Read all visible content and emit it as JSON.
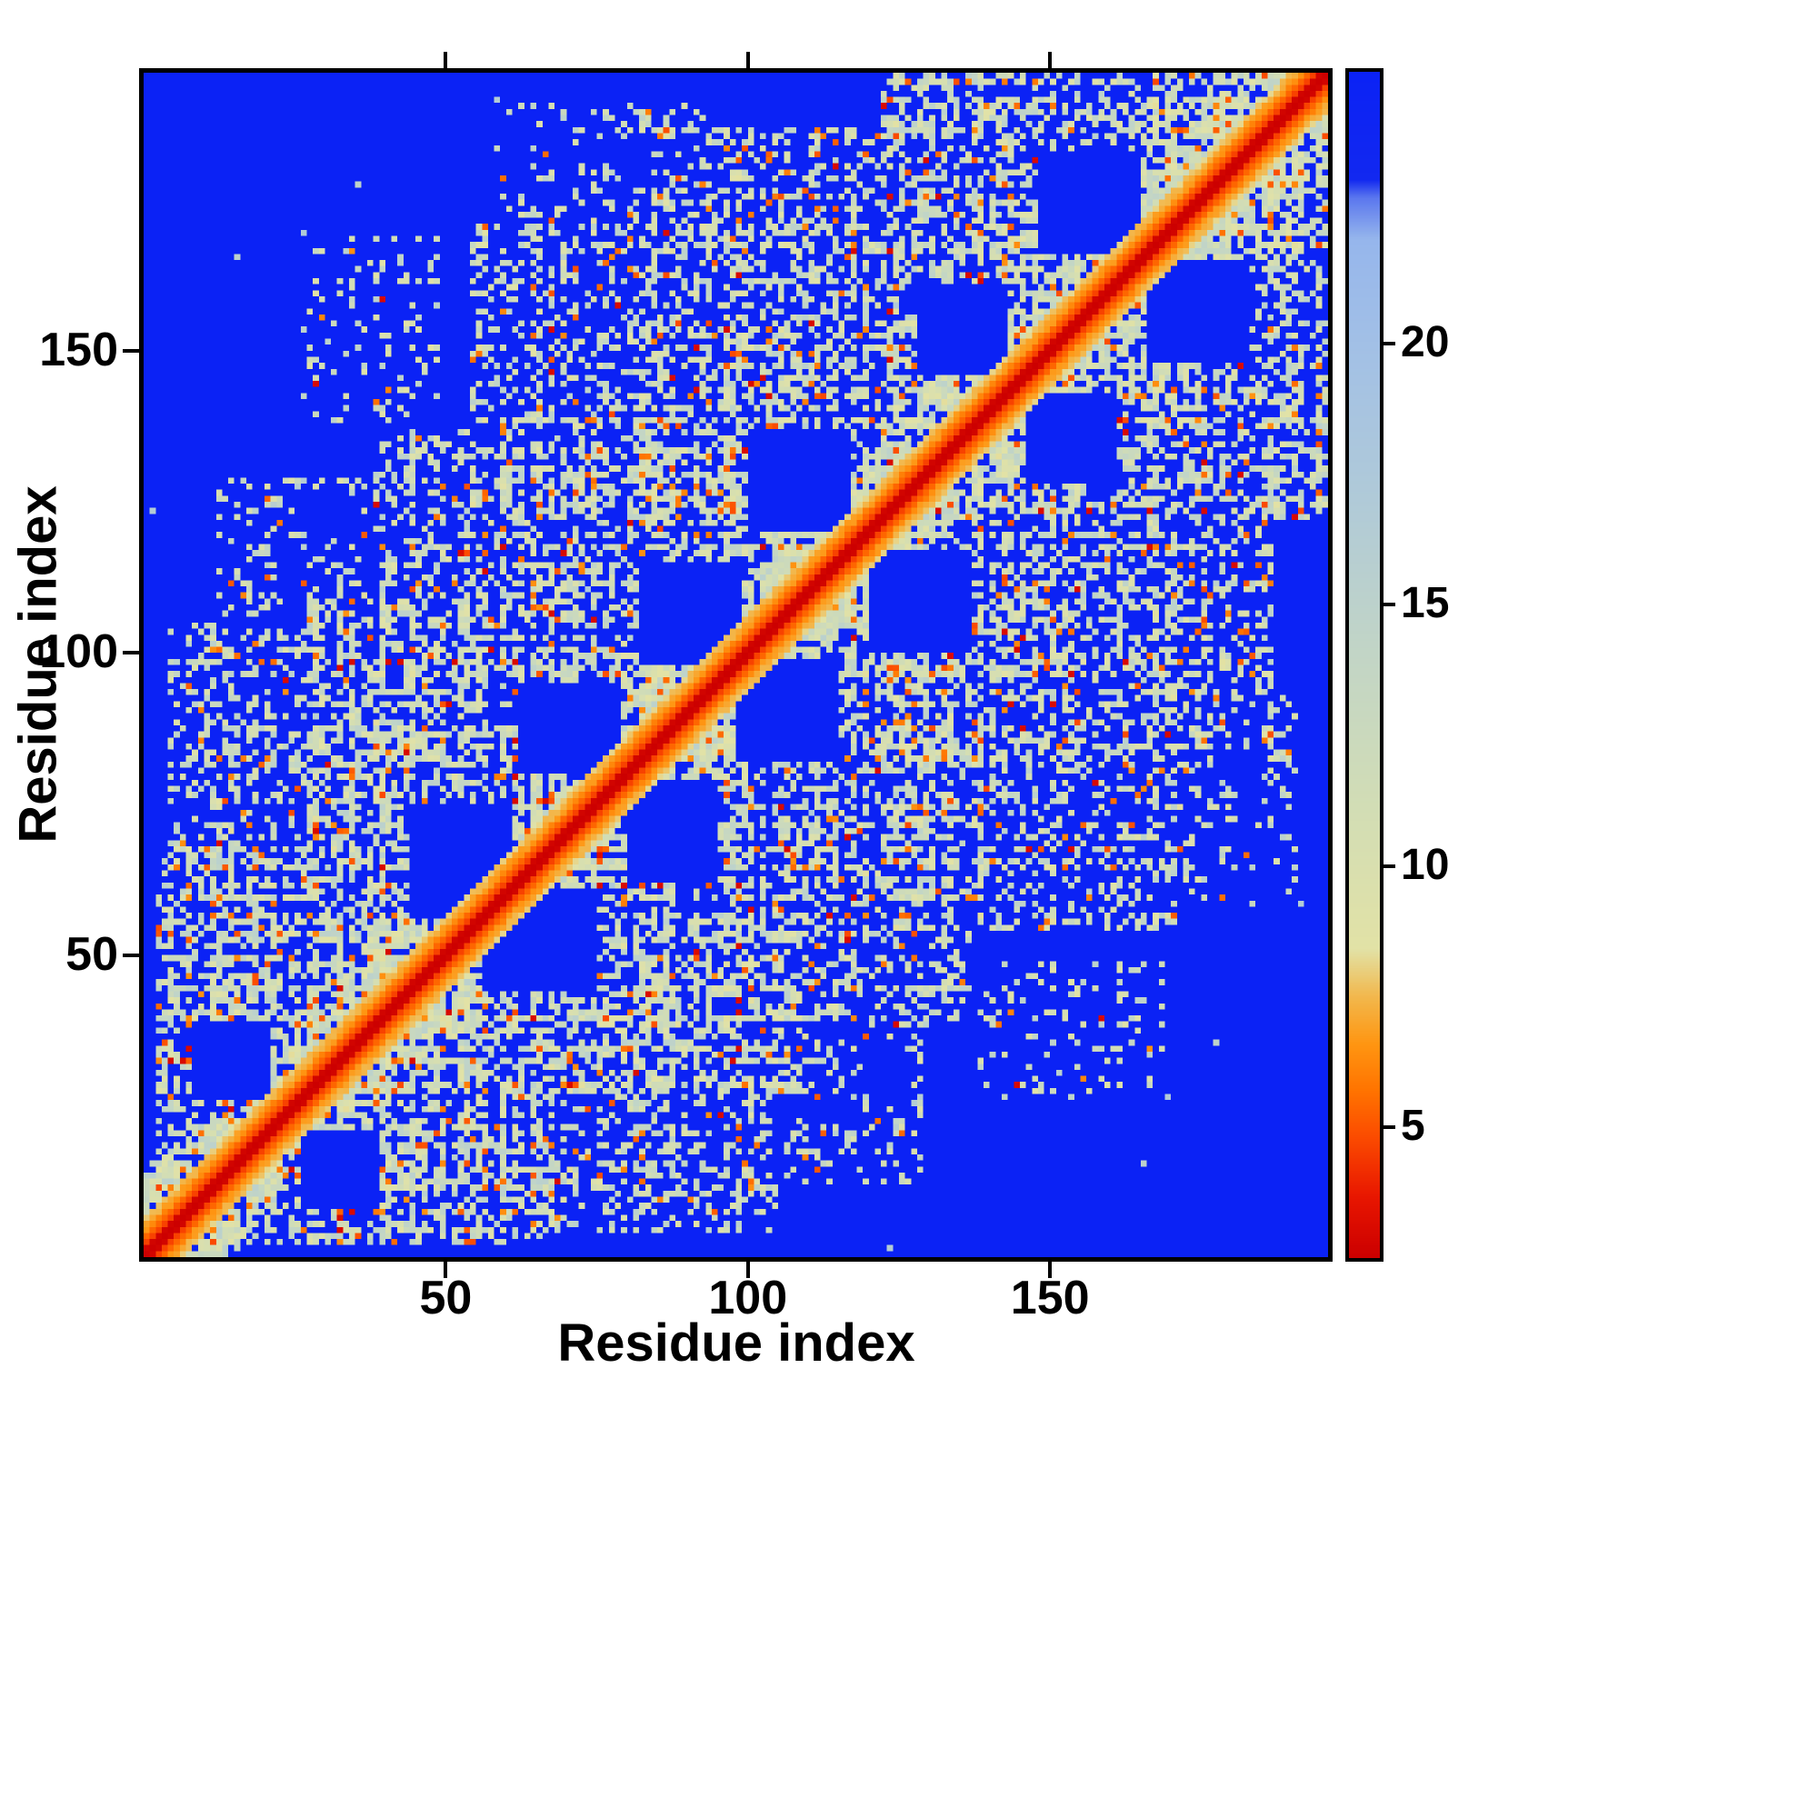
{
  "figure": {
    "background": "#ffffff"
  },
  "chart_data": {
    "type": "heatmap",
    "title": "",
    "xlabel": "Residue index",
    "ylabel": "Residue index",
    "x_range": [
      0,
      196
    ],
    "y_range": [
      0,
      196
    ],
    "x_ticks": [
      50,
      100,
      150
    ],
    "y_ticks": [
      50,
      100,
      150
    ],
    "grid": false,
    "legend_position": "colorbar-right",
    "description": "Symmetric residue-residue distance/contact map of a ~196-residue protein. A red diagonal (shortest distances) is flanked by orange then pale green bands; blocky pale-green contact clusters with orange speckles lie along and off the diagonal; saturated blue marks distant residue pairs. Colorbar (right) runs from red (~3) through orange (~5-7), pale green (~8-15), pale blue (~16-22) to blue (>23).",
    "colorbar": {
      "min": 2.5,
      "max": 25.2,
      "ticks": [
        5,
        10,
        15,
        20
      ],
      "stops": [
        [
          0.0,
          "#cc0000"
        ],
        [
          0.05,
          "#e81600"
        ],
        [
          0.1,
          "#fb4a00"
        ],
        [
          0.14,
          "#ff7300"
        ],
        [
          0.18,
          "#ff9612"
        ],
        [
          0.22,
          "#f2b84d"
        ],
        [
          0.26,
          "#e2e2a6"
        ],
        [
          0.38,
          "#d2ddb5"
        ],
        [
          0.51,
          "#c2d5c6"
        ],
        [
          0.64,
          "#b0cad8"
        ],
        [
          0.77,
          "#a2c0e6"
        ],
        [
          0.86,
          "#96b6ec"
        ],
        [
          0.895,
          "#5a76ee"
        ],
        [
          0.91,
          "#1228f0"
        ],
        [
          1.0,
          "#0b22f5"
        ]
      ]
    },
    "matrix": {
      "size": 196,
      "seed": 7,
      "background_value": 26,
      "diagonal_values": [
        2.5,
        2.7,
        4.6,
        5.4
      ],
      "near_band": {
        "max_d": 12,
        "density": 0.95,
        "fade_d": 16,
        "fade_density": 0.5
      },
      "speckle": {
        "orange": 0.08,
        "red": 0.012,
        "stray": 0.0012
      },
      "blobs": [
        {
          "a0": 2,
          "a1": 52,
          "b0": 8,
          "b1": 66,
          "density": 0.58
        },
        {
          "a0": 26,
          "a1": 92,
          "b0": 36,
          "b1": 108,
          "density": 0.5
        },
        {
          "a0": 58,
          "a1": 128,
          "b0": 68,
          "b1": 140,
          "density": 0.5
        },
        {
          "a0": 92,
          "a1": 158,
          "b0": 102,
          "b1": 170,
          "density": 0.46
        },
        {
          "a0": 122,
          "a1": 194,
          "b0": 132,
          "b1": 196,
          "density": 0.46
        },
        {
          "a0": 4,
          "a1": 40,
          "b0": 54,
          "b1": 104,
          "density": 0.33
        },
        {
          "a0": 12,
          "a1": 36,
          "b0": 98,
          "b1": 128,
          "density": 0.22
        },
        {
          "a0": 38,
          "a1": 72,
          "b0": 94,
          "b1": 136,
          "density": 0.3
        },
        {
          "a0": 54,
          "a1": 96,
          "b0": 128,
          "b1": 170,
          "density": 0.3
        },
        {
          "a0": 84,
          "a1": 126,
          "b0": 142,
          "b1": 186,
          "density": 0.36
        },
        {
          "a0": 26,
          "a1": 48,
          "b0": 138,
          "b1": 168,
          "density": 0.12
        },
        {
          "a0": 128,
          "a1": 166,
          "b0": 158,
          "b1": 196,
          "density": 0.42
        },
        {
          "a0": 58,
          "a1": 92,
          "b0": 162,
          "b1": 190,
          "density": 0.16
        }
      ],
      "holes": [
        {
          "a0": 44,
          "a1": 60,
          "b0": 56,
          "b1": 74
        },
        {
          "a0": 8,
          "a1": 20,
          "b0": 26,
          "b1": 38
        },
        {
          "a0": 82,
          "a1": 98,
          "b0": 98,
          "b1": 114
        },
        {
          "a0": 100,
          "a1": 116,
          "b0": 120,
          "b1": 136
        },
        {
          "a0": 128,
          "a1": 142,
          "b0": 146,
          "b1": 160
        },
        {
          "a0": 62,
          "a1": 78,
          "b0": 80,
          "b1": 94
        },
        {
          "a0": 148,
          "a1": 164,
          "b0": 166,
          "b1": 182
        }
      ]
    }
  },
  "colors": {
    "frame": "#000000",
    "map_background_blue": "#0b22f5",
    "diagonal_red": "#cc0000",
    "band_orange": "#ff7300",
    "contact_pale_green": "#c8d6c2",
    "contact_pale_blue": "#a2c0e6",
    "text": "#000000"
  }
}
